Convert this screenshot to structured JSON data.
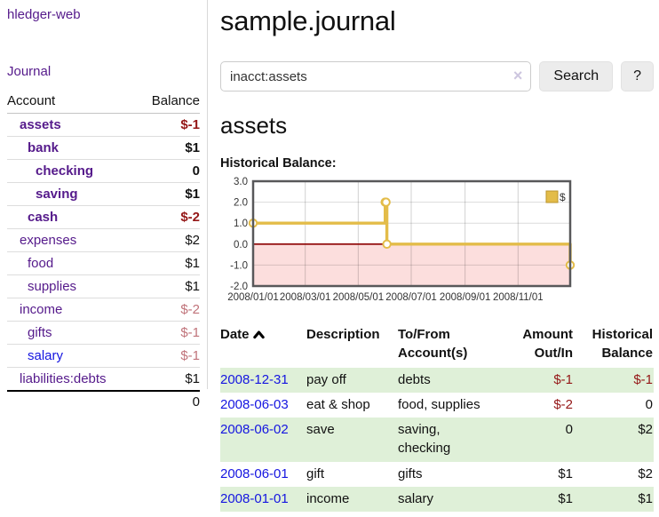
{
  "colors": {
    "link-purple": "#551a8b",
    "link-blue": "#1515e0",
    "neg-strong": "#941717",
    "neg-soft": "#c0737a",
    "row-green": "#dff0d8",
    "chart-gold": "#e3bc49",
    "chart-gold-dark": "#bb952c",
    "chart-pink": "#fcdedd",
    "chart-zero": "#8b0000",
    "chart-grid": "#cfcfcf",
    "chart-border": "#58585a"
  },
  "app": {
    "brand": "hledger-web",
    "nav_journal": "Journal"
  },
  "sidebar": {
    "table": {
      "headers": {
        "account": "Account",
        "balance": "Balance"
      },
      "accounts": [
        {
          "name": "assets",
          "balance": "$-1"
        },
        {
          "name": "bank",
          "balance": "$1"
        },
        {
          "name": "checking",
          "balance": "0"
        },
        {
          "name": "saving",
          "balance": "$1"
        },
        {
          "name": "cash",
          "balance": "$-2"
        },
        {
          "name": "expenses",
          "balance": "$2"
        },
        {
          "name": "food",
          "balance": "$1"
        },
        {
          "name": "supplies",
          "balance": "$1"
        },
        {
          "name": "income",
          "balance": "$-2"
        },
        {
          "name": "gifts",
          "balance": "$-1"
        },
        {
          "name": "salary",
          "balance": "$-1"
        },
        {
          "name": "liabilities:debts",
          "balance": "$1"
        }
      ],
      "total": "0"
    }
  },
  "header": {
    "title": "sample.journal"
  },
  "search": {
    "query": "inacct:assets",
    "clear_icon": "×",
    "button_label": "Search",
    "help_label": "?"
  },
  "account_page": {
    "title": "assets",
    "chart_label": "Historical Balance:"
  },
  "chart_data": {
    "type": "line",
    "step": true,
    "title": "Historical Balance:",
    "series": [
      {
        "name": "$",
        "points": [
          [
            "2008-01-01",
            1
          ],
          [
            "2008-06-01",
            2
          ],
          [
            "2008-06-02",
            2
          ],
          [
            "2008-06-03",
            0
          ],
          [
            "2008-12-31",
            -1
          ]
        ]
      }
    ],
    "xrange": [
      "2008-01-01",
      "2008-12-31"
    ],
    "ylim": [
      -2,
      3
    ],
    "yticks": [
      "3.0",
      "2.0",
      "1.0",
      "0.0",
      "-1.0",
      "-2.0"
    ],
    "xticks": [
      "2008/01/01",
      "2008/03/01",
      "2008/05/01",
      "2008/07/01",
      "2008/09/01",
      "2008/11/01"
    ],
    "grid": true,
    "legend_position": "top-right",
    "negative_region_shaded": true
  },
  "register": {
    "headers": {
      "date": "Date",
      "description": "Description",
      "accounts": "To/From Account(s)",
      "amount": "Amount Out/In",
      "balance": "Historical Balance"
    },
    "rows": [
      {
        "date": "2008-12-31",
        "description": "pay off",
        "accounts": "debts",
        "amount": "$-1",
        "balance": "$-1"
      },
      {
        "date": "2008-06-03",
        "description": "eat & shop",
        "accounts": "food, supplies",
        "amount": "$-2",
        "balance": "0"
      },
      {
        "date": "2008-06-02",
        "description": "save",
        "accounts": "saving, checking",
        "amount": "0",
        "balance": "$2"
      },
      {
        "date": "2008-06-01",
        "description": "gift",
        "accounts": "gifts",
        "amount": "$1",
        "balance": "$2"
      },
      {
        "date": "2008-01-01",
        "description": "income",
        "accounts": "salary",
        "amount": "$1",
        "balance": "$1"
      }
    ]
  }
}
